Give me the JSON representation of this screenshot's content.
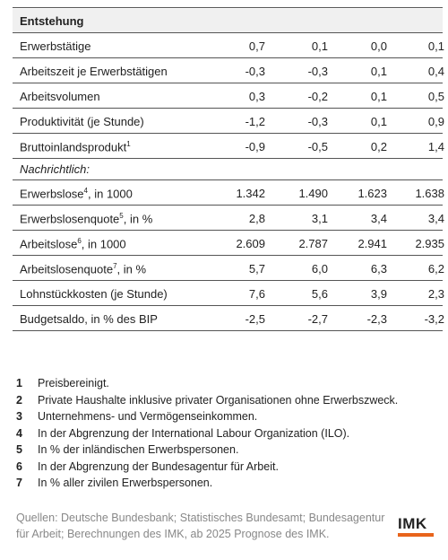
{
  "table": {
    "section": "Entstehung",
    "rows": [
      {
        "label": "Erwerbstätige",
        "values": [
          "0,7",
          "0,1",
          "0,0",
          "0,1"
        ]
      },
      {
        "label": "Arbeitszeit je Erwerbstätigen",
        "values": [
          "-0,3",
          "-0,3",
          "0,1",
          "0,4"
        ]
      },
      {
        "label": "Arbeitsvolumen",
        "values": [
          "0,3",
          "-0,2",
          "0,1",
          "0,5"
        ]
      },
      {
        "label": "Produktivität (je Stunde)",
        "values": [
          "-1,2",
          "-0,3",
          "0,1",
          "0,9"
        ]
      },
      {
        "label": "Bruttoinlandsprodukt",
        "sup": "1",
        "values": [
          "-0,9",
          "-0,5",
          "0,2",
          "1,4"
        ]
      }
    ],
    "note_heading": "Nachrichtlich:",
    "note_rows": [
      {
        "label": "Erwerbslose",
        "sup": "4",
        "suffix": ", in 1000",
        "values": [
          "1.342",
          "1.490",
          "1.623",
          "1.638"
        ]
      },
      {
        "label": "Erwerbslosenquote",
        "sup": "5",
        "suffix": ", in %",
        "values": [
          "2,8",
          "3,1",
          "3,4",
          "3,4"
        ]
      },
      {
        "label": "Arbeitslose",
        "sup": "6",
        "suffix": ", in 1000",
        "values": [
          "2.609",
          "2.787",
          "2.941",
          "2.935"
        ]
      },
      {
        "label": "Arbeitslosenquote",
        "sup": "7",
        "suffix": ", in %",
        "values": [
          "5,7",
          "6,0",
          "6,3",
          "6,2"
        ]
      },
      {
        "label": "Lohnstückkosten (je Stunde)",
        "values": [
          "7,6",
          "5,6",
          "3,9",
          "2,3"
        ]
      },
      {
        "label": "Budgetsaldo, in % des BIP",
        "values": [
          "-2,5",
          "-2,7",
          "-2,3",
          "-3,2"
        ]
      }
    ]
  },
  "footnotes": [
    {
      "number": "1",
      "text": "Preisbereinigt."
    },
    {
      "number": "2",
      "text": "Private Haushalte inklusive privater Organisationen ohne Erwerbszweck."
    },
    {
      "number": "3",
      "text": "Unternehmens- und Vermögenseinkommen."
    },
    {
      "number": "4",
      "text": "In der Abgrenzung der International Labour Organization (ILO)."
    },
    {
      "number": "5",
      "text": "In % der inländischen Erwerbspersonen."
    },
    {
      "number": "6",
      "text": "In der Abgrenzung der Bundesagentur für Arbeit."
    },
    {
      "number": "7",
      "text": "In % aller zivilen Erwerbspersonen."
    }
  ],
  "source": "Quellen: Deutsche Bundesbank; Statistisches Bundesamt; Bundesagentur für Arbeit; Berechnungen des IMK, ab 2025 Prognose des IMK.",
  "logo": "IMK"
}
